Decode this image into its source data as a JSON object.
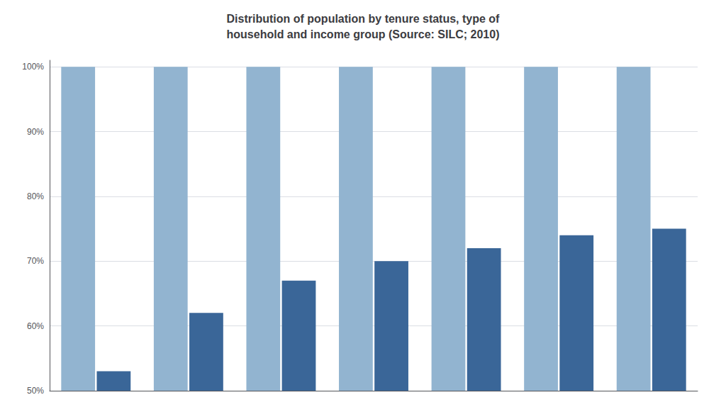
{
  "chart_data": {
    "type": "bar",
    "title": "Distribution of population by tenure status, type of\nhousehold and income group (Source: SILC; 2010)",
    "categories": [
      null,
      null,
      null,
      null,
      null,
      null,
      null
    ],
    "series": [
      {
        "color": "#92B4D0",
        "values": [
          100,
          100,
          100,
          100,
          100,
          100,
          100
        ]
      },
      {
        "color": "#3A6698",
        "values": [
          53,
          62,
          67,
          70,
          72,
          74,
          75
        ]
      }
    ],
    "ylim": [
      50,
      101
    ],
    "yticks": [
      {
        "value": 50,
        "label": "50%"
      },
      {
        "value": 60,
        "label": "60%"
      },
      {
        "value": 70,
        "label": "70%"
      },
      {
        "value": 80,
        "label": "80%"
      },
      {
        "value": 90,
        "label": "90%"
      },
      {
        "value": 100,
        "label": "100%"
      }
    ],
    "grid": true,
    "tick_labels": "y"
  }
}
